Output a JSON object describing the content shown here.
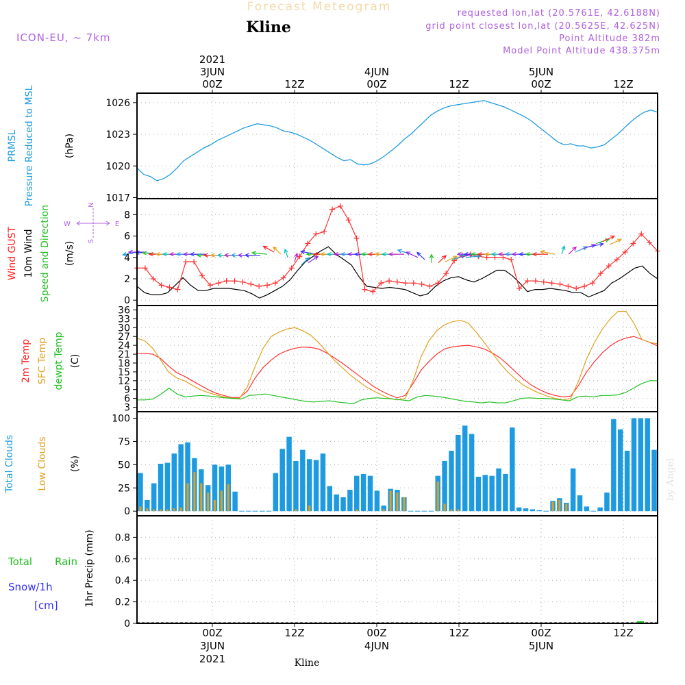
{
  "header": {
    "title": "Forecast Meteogram",
    "station": "Kline",
    "model": "ICON-EU, ~ 7km",
    "requested": "requested lon,lat (20.5761E, 42.6188N)",
    "grid_point": "grid point closest lon,lat (20.5625E, 42.625N)",
    "point_altitude": "Point Altitude 382m",
    "model_altitude": "Model Point Altitude 438.375m",
    "footer_station": "Kline",
    "watermark": "by Angel"
  },
  "time_axis": {
    "top_ticks": [
      "00Z",
      "12Z",
      "00Z",
      "12Z",
      "00Z",
      "12Z"
    ],
    "top_dates": [
      "3JUN",
      "4JUN",
      "5JUN"
    ],
    "top_year": "2021",
    "bottom_ticks": [
      "00Z",
      "12Z",
      "00Z",
      "12Z",
      "00Z",
      "12Z"
    ],
    "bottom_dates": [
      "3JUN",
      "4JUN",
      "5JUN"
    ],
    "bottom_year": "2021",
    "tick_hours": [
      0,
      12,
      24,
      36,
      48,
      60
    ],
    "date_hours": [
      0,
      24,
      48
    ],
    "range_hours": [
      -11,
      65
    ],
    "step_hours": 1
  },
  "panels": {
    "pressure": {
      "labels": [
        "PRMSL",
        "Pressure Reduced to MSL"
      ],
      "unit": "(hPa)",
      "ticks": [
        "1026",
        "1023",
        "1020",
        "1017"
      ],
      "tick_values": [
        1026,
        1023,
        1020,
        1017
      ],
      "ylim": [
        1016.9,
        1026.9
      ],
      "color": "#1e9be0"
    },
    "wind": {
      "labels": [
        "Wind GUST",
        "10m Wind",
        "Speed and Direction"
      ],
      "label_colors": [
        "#ff2020",
        "#000000",
        "#20c020"
      ],
      "unit": "(m/s)",
      "ticks": [
        "8",
        "6",
        "4",
        "2",
        "0"
      ],
      "tick_values": [
        8,
        6,
        4,
        2,
        0
      ],
      "ylim": [
        -0.5,
        9.5
      ],
      "compass": {
        "n": "N",
        "s": "S",
        "w": "W",
        "e": "E"
      }
    },
    "temp": {
      "labels": [
        "2m Temp",
        "SFC Temp",
        "dewpt Temp"
      ],
      "label_colors": [
        "#ff2020",
        "#e0a020",
        "#20c020"
      ],
      "unit": "(C)",
      "ticks": [
        "36",
        "33",
        "30",
        "27",
        "24",
        "21",
        "18",
        "15",
        "12",
        "9",
        "6",
        "3"
      ],
      "tick_values": [
        36,
        33,
        30,
        27,
        24,
        21,
        18,
        15,
        12,
        9,
        6,
        3
      ],
      "ylim": [
        1.5,
        37.5
      ]
    },
    "clouds": {
      "labels": [
        "Total Clouds",
        "Low Clouds"
      ],
      "label_colors": [
        "#1e9be0",
        "#e0a020"
      ],
      "unit": "(%)",
      "ticks": [
        "100",
        "75",
        "50",
        "25",
        "0"
      ],
      "tick_values": [
        100,
        75,
        50,
        25,
        0
      ],
      "ylim": [
        -5,
        107
      ]
    },
    "precip": {
      "labels": [
        "Total",
        "Rain",
        "Snow/1h",
        "[cm]"
      ],
      "label_colors": [
        "#20c020",
        "#20c020",
        "#3030ff",
        "#3030ff"
      ],
      "unit": "1hr Precip (mm)",
      "ticks": [
        "0.8",
        "0.6",
        "0.4",
        "0.2",
        "0"
      ],
      "tick_values": [
        0.8,
        0.6,
        0.4,
        0.2,
        0
      ],
      "ylim": [
        0,
        1
      ]
    }
  },
  "chart_data": [
    {
      "type": "line",
      "id": "prmsl",
      "series": [
        {
          "values": [
            1019.8,
            1019.2,
            1019.0,
            1018.6,
            1018.8,
            1019.2,
            1019.8,
            1020.5,
            1020.9,
            1021.3,
            1021.7,
            1022.0,
            1022.4,
            1022.7,
            1023.0,
            1023.3,
            1023.6,
            1023.8,
            1024.0,
            1023.9,
            1023.8,
            1023.6,
            1023.3,
            1023.2,
            1023.0,
            1022.7,
            1022.4,
            1022.0,
            1021.6,
            1021.2,
            1020.8,
            1020.5,
            1020.6,
            1020.2,
            1020.1,
            1020.2,
            1020.5,
            1020.9,
            1021.4,
            1021.9,
            1022.5,
            1023.0,
            1023.6,
            1024.2,
            1024.8,
            1025.2,
            1025.5,
            1025.7,
            1025.8,
            1025.9,
            1026.0,
            1026.1,
            1026.2,
            1026.0,
            1025.8,
            1025.6,
            1025.3,
            1025.0,
            1024.7,
            1024.3,
            1023.8,
            1023.3,
            1022.8,
            1022.3,
            1022.0,
            1022.1,
            1021.9,
            1021.9,
            1021.7,
            1021.8,
            1022.0,
            1022.5,
            1023.0,
            1023.6,
            1024.2,
            1024.7,
            1025.1,
            1025.3,
            1025.1
          ]
        }
      ],
      "values_dense_note": ""
    },
    {
      "type": "line",
      "id": "wind10m",
      "series": [
        {
          "values": [
            1.3,
            0.7,
            0.5,
            0.5,
            0.7,
            1.4,
            2.1,
            1.4,
            0.9,
            0.9,
            1.1,
            1.1,
            1.1,
            1.0,
            0.9,
            0.6,
            0.2,
            0.5,
            0.9,
            1.3,
            1.9,
            2.8,
            3.6,
            4.1,
            4.6,
            5.0,
            4.3,
            3.8,
            3.3,
            2.2,
            1.3,
            1.2,
            1.1,
            1.2,
            1.1,
            1.0,
            0.7,
            0.4,
            0.6,
            1.3,
            1.8,
            2.1,
            2.2,
            1.9,
            1.7,
            2.0,
            2.4,
            2.8,
            2.8,
            2.3,
            1.6,
            0.8,
            1.0,
            1.0,
            1.1,
            1.0,
            0.9,
            0.7,
            0.7,
            0.3,
            0.6,
            0.9,
            1.6,
            2.0,
            2.5,
            3.0,
            3.2,
            2.5,
            2.0
          ]
        }
      ]
    },
    {
      "type": "line",
      "id": "gust",
      "series": [
        {
          "values": [
            3.0,
            3.0,
            2.0,
            1.4,
            1.2,
            1.0,
            3.6,
            3.6,
            2.3,
            1.4,
            1.6,
            1.8,
            1.8,
            1.7,
            1.5,
            1.3,
            1.4,
            1.6,
            2.1,
            3.0,
            4.1,
            5.3,
            6.2,
            6.4,
            8.5,
            8.8,
            7.5,
            5.8,
            1.0,
            0.8,
            1.6,
            1.8,
            1.7,
            1.6,
            1.6,
            1.5,
            1.3,
            1.6,
            2.5,
            3.7,
            4.2,
            4.3,
            4.1,
            4.0,
            4.0,
            4.0,
            3.8,
            1.1,
            1.8,
            1.8,
            1.7,
            1.6,
            1.5,
            1.3,
            1.1,
            1.3,
            1.6,
            2.5,
            3.2,
            3.8,
            4.5,
            5.3,
            6.2,
            5.4,
            4.6
          ]
        }
      ]
    },
    {
      "type": "line",
      "id": "temperatures",
      "series": [
        {
          "values": [
            21.3,
            21.3,
            21.0,
            19.5,
            17.0,
            14.8,
            13.5,
            12.0,
            10.5,
            9.0,
            7.8,
            7.0,
            6.3,
            6.3,
            8.5,
            13.0,
            16.5,
            19.0,
            21.0,
            22.2,
            23.0,
            23.4,
            23.3,
            22.8,
            21.5,
            19.8,
            18.0,
            16.0,
            14.0,
            12.0,
            10.0,
            8.5,
            7.2,
            6.2,
            7.0,
            11.0,
            15.5,
            18.5,
            21.0,
            22.8,
            23.5,
            23.8,
            24.0,
            23.5,
            22.8,
            21.5,
            19.8,
            17.5,
            15.0,
            12.5,
            10.5,
            9.0,
            7.8,
            7.0,
            6.5,
            6.8,
            10.5,
            15.0,
            18.5,
            21.5,
            23.8,
            25.5,
            26.5,
            27.0,
            26.0,
            25.0,
            23.8
          ]
        },
        {
          "values": [
            26.5,
            25.5,
            23.0,
            19.0,
            15.0,
            13.0,
            12.0,
            10.5,
            9.0,
            8.0,
            7.2,
            6.5,
            6.0,
            6.0,
            10.0,
            17.0,
            23.0,
            27.0,
            28.5,
            29.5,
            30.0,
            29.0,
            27.5,
            25.0,
            22.0,
            19.0,
            16.5,
            14.0,
            12.0,
            10.0,
            8.5,
            7.2,
            6.0,
            5.5,
            6.0,
            12.0,
            20.0,
            25.5,
            29.0,
            31.0,
            32.0,
            32.5,
            31.5,
            28.5,
            25.0,
            21.5,
            18.0,
            15.0,
            12.5,
            10.5,
            9.0,
            7.8,
            6.8,
            6.0,
            5.5,
            6.0,
            12.0,
            19.5,
            25.0,
            29.5,
            33.0,
            35.5,
            35.5,
            31.5,
            26.0,
            25.0,
            24.5
          ]
        },
        {
          "values": [
            5.5,
            5.5,
            5.8,
            7.5,
            9.5,
            7.5,
            6.5,
            6.8,
            7.0,
            6.8,
            6.5,
            6.2,
            6.0,
            5.8,
            7.0,
            7.2,
            7.5,
            7.0,
            6.5,
            6.0,
            5.5,
            5.0,
            4.8,
            5.0,
            5.2,
            4.8,
            4.5,
            4.2,
            5.5,
            6.0,
            6.2,
            6.0,
            5.8,
            5.5,
            5.2,
            6.5,
            7.0,
            6.8,
            6.5,
            6.0,
            5.5,
            5.0,
            4.8,
            4.5,
            4.8,
            4.5,
            4.5,
            5.2,
            6.0,
            6.2,
            6.0,
            6.0,
            5.8,
            5.5,
            5.2,
            6.5,
            6.8,
            6.5,
            7.0,
            7.0,
            7.2,
            8.0,
            9.5,
            11.0,
            12.0,
            12.0
          ]
        }
      ]
    },
    {
      "type": "bar",
      "id": "clouds",
      "series": [
        {
          "values": [
            41,
            12,
            30,
            51,
            52,
            62,
            72,
            74,
            57,
            45,
            28,
            50,
            48,
            50,
            21,
            0,
            0,
            0,
            0,
            0,
            41,
            67,
            80,
            54,
            66,
            56,
            55,
            62,
            27,
            18,
            15,
            23,
            38,
            40,
            38,
            22,
            6,
            24,
            23,
            15,
            0,
            0,
            0,
            0,
            38,
            54,
            65,
            82,
            92,
            83,
            37,
            39,
            38,
            46,
            40,
            90,
            4,
            3,
            2,
            1,
            0,
            11,
            14,
            9,
            46,
            17,
            5,
            0,
            4,
            20,
            99,
            88,
            65,
            100,
            100,
            100,
            66
          ]
        },
        {
          "values": [
            5,
            3,
            2,
            2,
            2,
            3,
            4,
            30,
            42,
            30,
            20,
            12,
            22,
            29,
            0,
            0,
            0,
            0,
            0,
            0,
            0,
            0,
            0,
            2,
            0,
            6,
            0,
            0,
            0,
            0,
            0,
            0,
            2,
            0,
            0,
            0,
            2,
            22,
            20,
            15,
            0,
            0,
            0,
            0,
            32,
            8,
            2,
            2,
            0,
            0,
            0,
            0,
            0,
            0,
            0,
            0,
            0,
            0,
            0,
            0,
            0,
            10,
            12,
            8,
            0,
            0,
            0,
            0,
            0,
            0,
            0,
            0,
            0,
            0,
            0,
            0,
            0
          ]
        }
      ]
    },
    {
      "type": "bar",
      "id": "precip",
      "series": [
        {
          "values": [
            0,
            0,
            0,
            0,
            0,
            0,
            0,
            0,
            0,
            0,
            0,
            0,
            0,
            0,
            0,
            0,
            0,
            0,
            0,
            0,
            0,
            0,
            0,
            0,
            0,
            0,
            0,
            0,
            0,
            0,
            0,
            0,
            0,
            0,
            0,
            0,
            0,
            0,
            0,
            0,
            0,
            0,
            0,
            0,
            0,
            0,
            0,
            0,
            0,
            0,
            0,
            0,
            0,
            0,
            0,
            0,
            0,
            0,
            0,
            0,
            0,
            0,
            0,
            0,
            0,
            0,
            0,
            0,
            0,
            0,
            0,
            0,
            0,
            0,
            0,
            0,
            0
          ]
        }
      ]
    }
  ],
  "wind_arrows": {
    "hours_start": -11,
    "speed": [
      4.5,
      4.5,
      4.4,
      4.3,
      4.3,
      4.3,
      4.3,
      4.3,
      4.3,
      4.3,
      4.3,
      4.2,
      4.2,
      4.2,
      4.2,
      4.2,
      4.2,
      4.2,
      4.2,
      4.3,
      4.5,
      4.3,
      4.0,
      3.6,
      3.3,
      3.5,
      4.3,
      4.3,
      4.3,
      4.3,
      4.3,
      4.3,
      4.3,
      4.3,
      4.3,
      4.3,
      4.3,
      4.3,
      4.3,
      4.3,
      4.3,
      4.0,
      3.8,
      3.5,
      3.5,
      3.6,
      3.8,
      4.0,
      4.0,
      4.3,
      4.3,
      4.3,
      4.3,
      4.3,
      4.3,
      4.3,
      4.3,
      4.3,
      4.3,
      4.3,
      4.3,
      4.3,
      4.3,
      4.3,
      4.5,
      4.8,
      5.0,
      5.3,
      5.5,
      5.2
    ],
    "dir_deg": [
      200,
      180,
      175,
      170,
      180,
      180,
      180,
      180,
      180,
      180,
      180,
      180,
      180,
      180,
      180,
      180,
      180,
      180,
      180,
      170,
      135,
      120,
      100,
      80,
      60,
      50,
      160,
      180,
      180,
      180,
      180,
      180,
      180,
      180,
      180,
      180,
      180,
      180,
      180,
      180,
      150,
      140,
      120,
      90,
      60,
      40,
      30,
      20,
      10,
      180,
      180,
      180,
      180,
      180,
      180,
      180,
      180,
      180,
      180,
      180,
      180,
      160,
      80,
      60,
      40,
      30,
      20,
      30,
      40,
      40
    ],
    "colors": [
      "#1e9be0",
      "#8b2be2",
      "#3030ff",
      "#20c020",
      "#ff2020",
      "#e0a020",
      "#00c0c0",
      "#c020c0"
    ]
  }
}
